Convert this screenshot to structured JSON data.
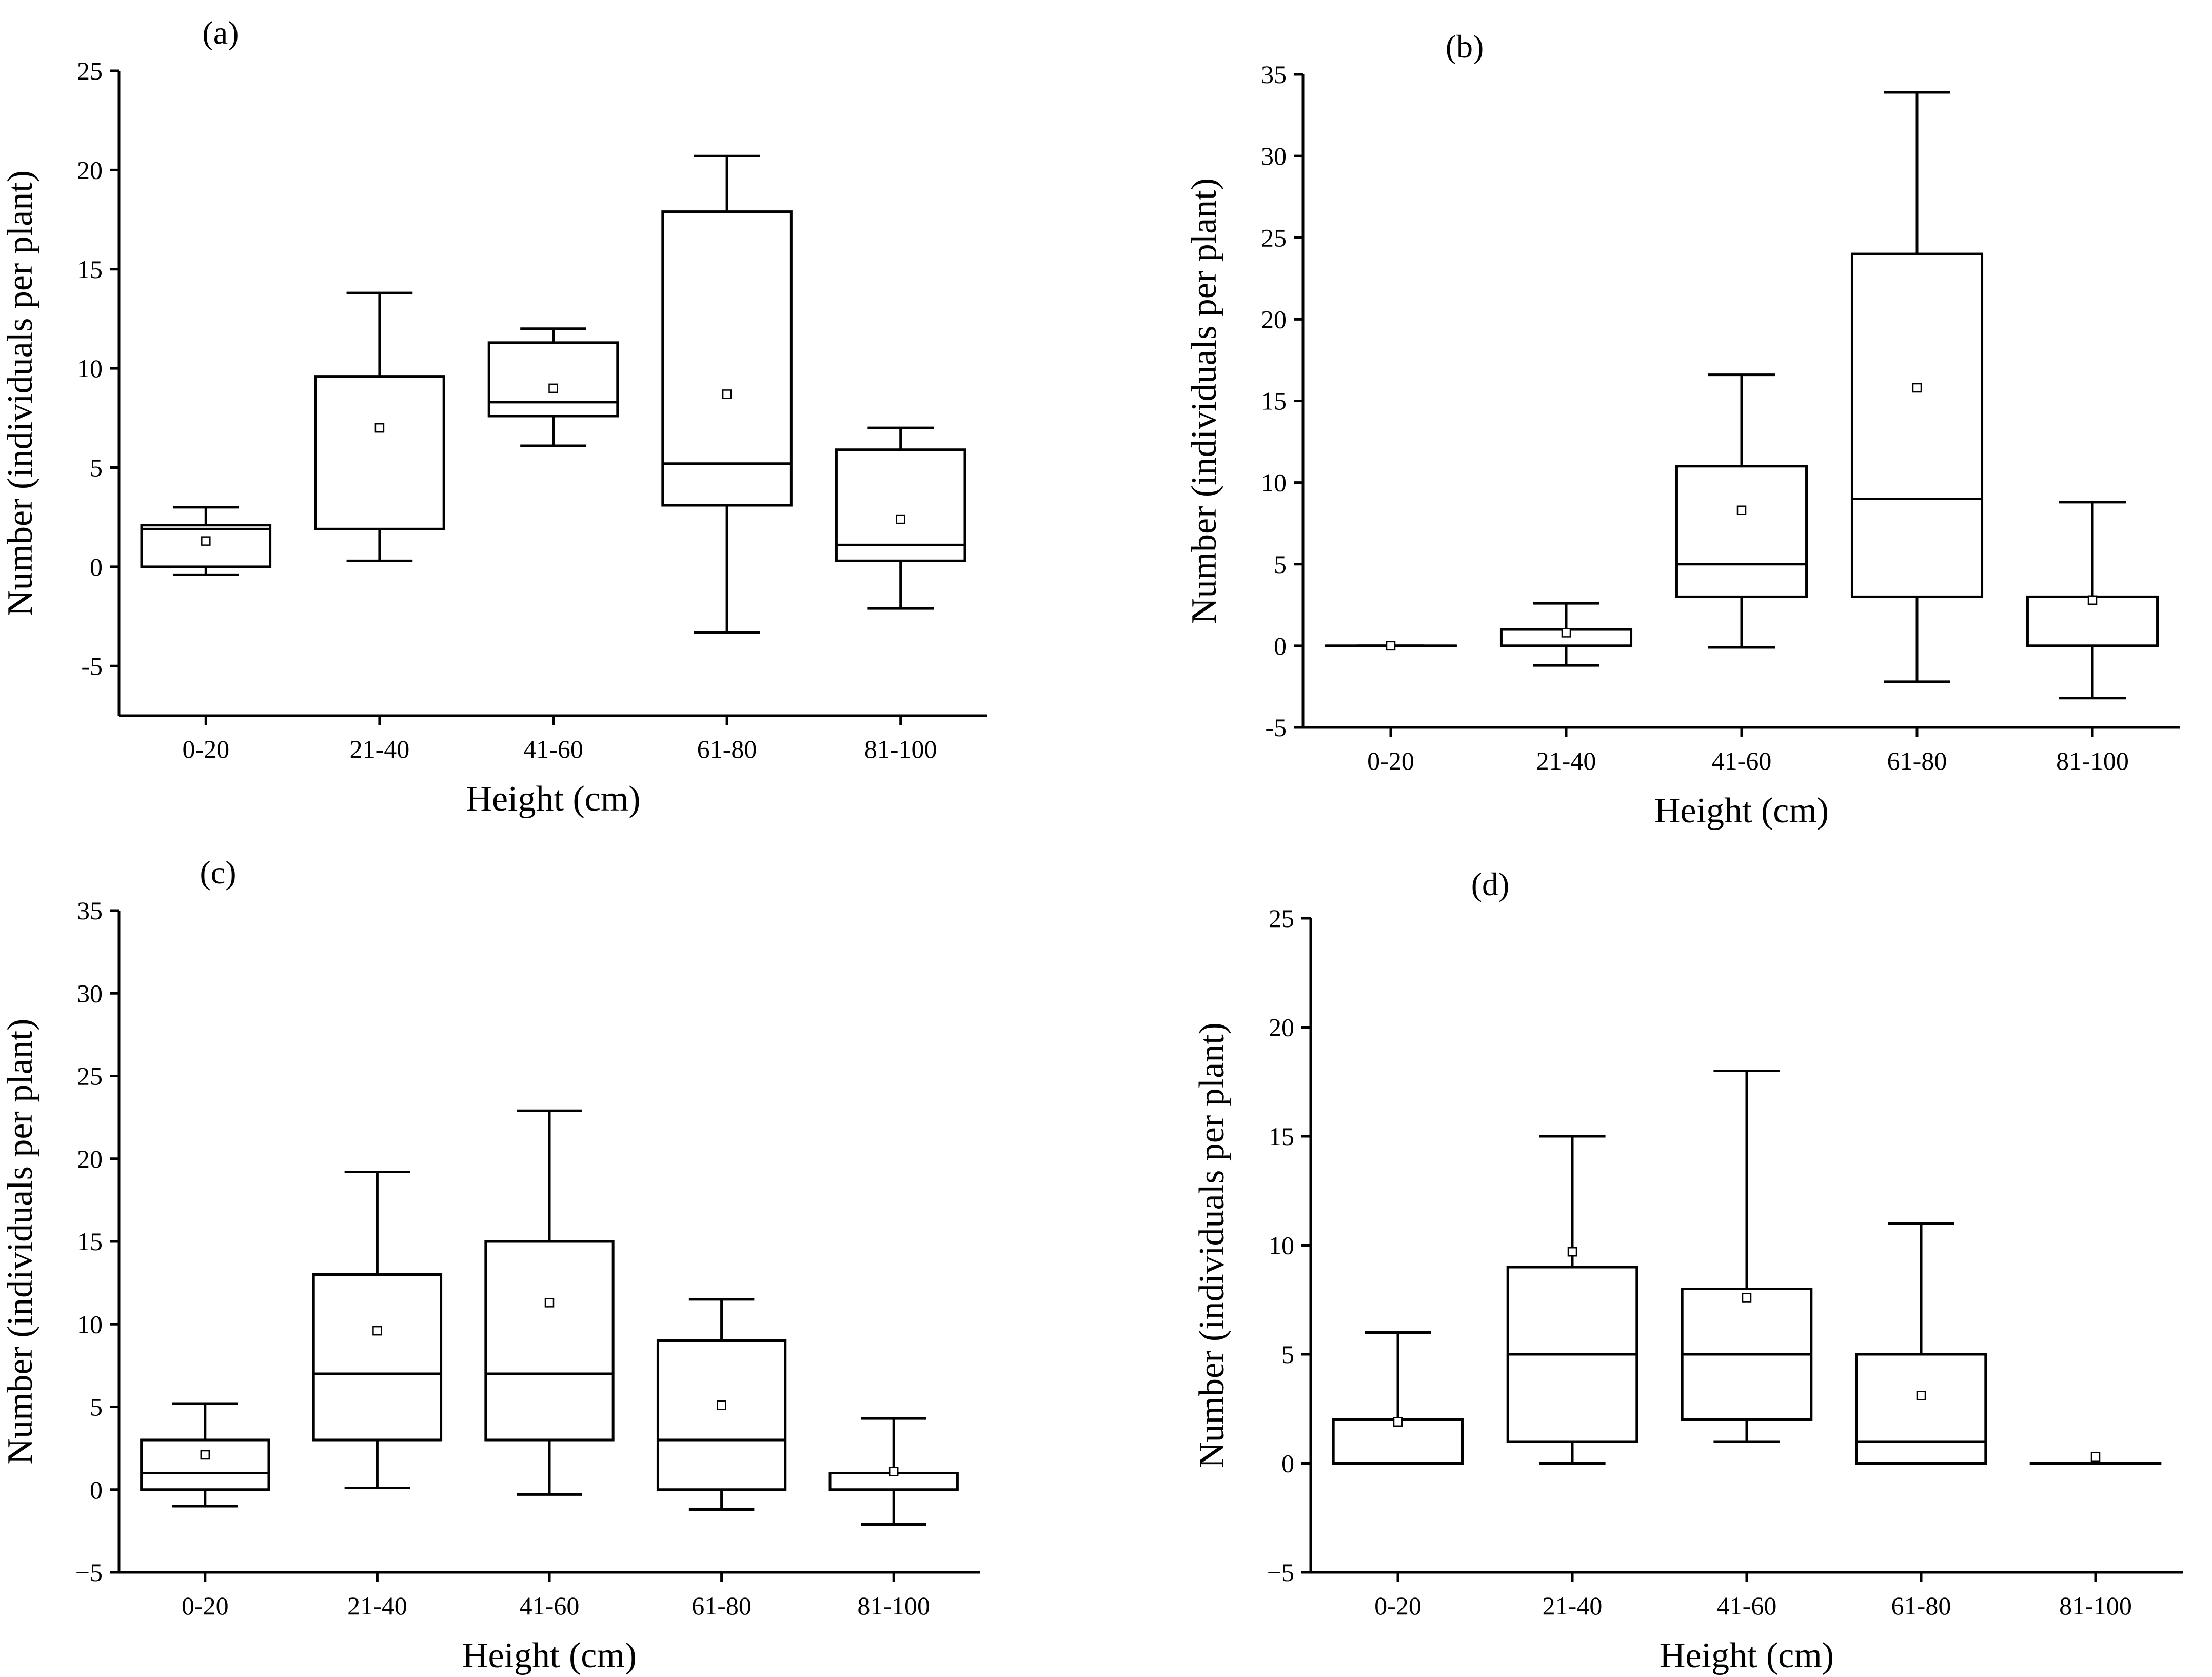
{
  "chart_data": [
    {
      "type": "box",
      "panel": "(a)",
      "xlabel": "Height (cm)",
      "ylabel": "Number (individuals per plant)",
      "categories": [
        "0-20",
        "21-40",
        "41-60",
        "61-80",
        "81-100"
      ],
      "ylim": [
        -7.5,
        25
      ],
      "yticks": [
        -5,
        0,
        5,
        10,
        15,
        20,
        25
      ],
      "ytick_labels": [
        "-5",
        "0",
        "5",
        "10",
        "15",
        "20",
        "25"
      ],
      "boxes": [
        {
          "min": -0.4,
          "q1": 0,
          "median": 1.9,
          "q3": 2.1,
          "max": 3.0,
          "mean": 1.3
        },
        {
          "min": 0.3,
          "q1": 1.9,
          "median": 1.9,
          "q3": 9.6,
          "max": 13.8,
          "mean": 7.0
        },
        {
          "min": 6.1,
          "q1": 7.6,
          "median": 8.3,
          "q3": 11.3,
          "max": 12.0,
          "mean": 9.0
        },
        {
          "min": -3.3,
          "q1": 3.1,
          "median": 5.2,
          "q3": 17.9,
          "max": 20.7,
          "mean": 8.7
        },
        {
          "min": -2.1,
          "q1": 0.3,
          "median": 1.1,
          "q3": 5.9,
          "max": 7.0,
          "mean": 2.4
        }
      ]
    },
    {
      "type": "box",
      "panel": "(b)",
      "xlabel": "Height (cm)",
      "ylabel": "Number (individuals per plant)",
      "categories": [
        "0-20",
        "21-40",
        "41-60",
        "61-80",
        "81-100"
      ],
      "ylim": [
        -5,
        35
      ],
      "yticks": [
        -5,
        0,
        5,
        10,
        15,
        20,
        25,
        30,
        35
      ],
      "ytick_labels": [
        "-5",
        "0",
        "5",
        "10",
        "15",
        "20",
        "25",
        "30",
        "35"
      ],
      "boxes": [
        {
          "min": 0,
          "q1": 0,
          "median": 0,
          "q3": 0,
          "max": 0,
          "mean": 0
        },
        {
          "min": -1.2,
          "q1": 0,
          "median": 0,
          "q3": 1.0,
          "max": 2.6,
          "mean": 0.8
        },
        {
          "min": -0.1,
          "q1": 3.0,
          "median": 5.0,
          "q3": 11.0,
          "max": 16.6,
          "mean": 8.3
        },
        {
          "min": -2.2,
          "q1": 3.0,
          "median": 9.0,
          "q3": 24.0,
          "max": 33.9,
          "mean": 15.8
        },
        {
          "min": -3.2,
          "q1": 0,
          "median": 0,
          "q3": 3.0,
          "max": 8.8,
          "mean": 2.8
        }
      ]
    },
    {
      "type": "box",
      "panel": "(c)",
      "xlabel": "Height (cm)",
      "ylabel": "Number (individuals per plant)",
      "categories": [
        "0-20",
        "21-40",
        "41-60",
        "61-80",
        "81-100"
      ],
      "ylim": [
        -5,
        35
      ],
      "yticks": [
        -5,
        0,
        5,
        10,
        15,
        20,
        25,
        30,
        35
      ],
      "ytick_labels": [
        "−5",
        "0",
        "5",
        "10",
        "15",
        "20",
        "25",
        "30",
        "35"
      ],
      "boxes": [
        {
          "min": -1.0,
          "q1": 0,
          "median": 1.0,
          "q3": 3.0,
          "max": 5.2,
          "mean": 2.1
        },
        {
          "min": 0.1,
          "q1": 3.0,
          "median": 7.0,
          "q3": 13.0,
          "max": 19.2,
          "mean": 9.6
        },
        {
          "min": -0.3,
          "q1": 3.0,
          "median": 7.0,
          "q3": 15.0,
          "max": 22.9,
          "mean": 11.3
        },
        {
          "min": -1.2,
          "q1": 0,
          "median": 3.0,
          "q3": 9.0,
          "max": 11.5,
          "mean": 5.1
        },
        {
          "min": -2.1,
          "q1": 0,
          "median": 1.0,
          "q3": 1.0,
          "max": 4.3,
          "mean": 1.1
        }
      ]
    },
    {
      "type": "box",
      "panel": "(d)",
      "xlabel": "Height (cm)",
      "ylabel": "Number (individuals per plant)",
      "categories": [
        "0-20",
        "21-40",
        "41-60",
        "61-80",
        "81-100"
      ],
      "ylim": [
        -5,
        25
      ],
      "yticks": [
        -5,
        0,
        5,
        10,
        15,
        20,
        25
      ],
      "ytick_labels": [
        "−5",
        "0",
        "5",
        "10",
        "15",
        "20",
        "25"
      ],
      "boxes": [
        {
          "min": 0,
          "q1": 0,
          "median": 0,
          "q3": 2.0,
          "max": 6.0,
          "mean": 1.9
        },
        {
          "min": 0,
          "q1": 1.0,
          "median": 5.0,
          "q3": 9.0,
          "max": 15.0,
          "mean": 9.7
        },
        {
          "min": 1.0,
          "q1": 2.0,
          "median": 5.0,
          "q3": 8.0,
          "max": 18.0,
          "mean": 7.6
        },
        {
          "min": 0,
          "q1": 0,
          "median": 1.0,
          "q3": 5.0,
          "max": 11.0,
          "mean": 3.1
        },
        {
          "min": 0,
          "q1": 0,
          "median": 0,
          "q3": 0,
          "max": 0,
          "mean": 0.3
        }
      ]
    }
  ]
}
